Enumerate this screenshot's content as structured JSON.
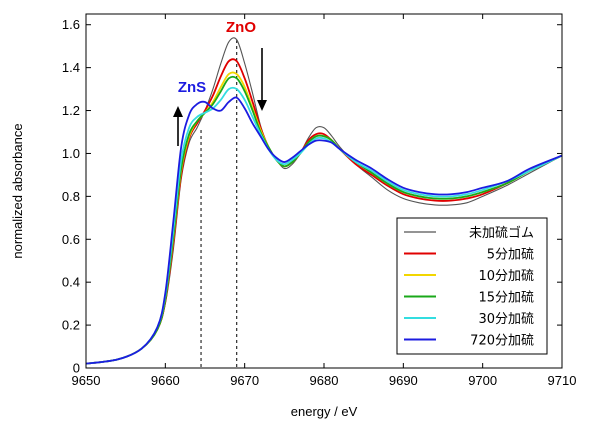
{
  "chart_data": {
    "type": "line",
    "title": "",
    "xlabel": "energy / eV",
    "ylabel": "normalized absorbance",
    "xlim": [
      9650,
      9710
    ],
    "ylim": [
      0,
      1.65
    ],
    "xticks": [
      9650,
      9660,
      9670,
      9680,
      9690,
      9700,
      9710
    ],
    "yticks": [
      0,
      0.2,
      0.4,
      0.6,
      0.8,
      1.0,
      1.2,
      1.4,
      1.6
    ],
    "xtick_labels": [
      "9650",
      "9660",
      "9670",
      "9680",
      "9690",
      "9700",
      "9710"
    ],
    "ytick_labels": [
      "0",
      "0.2",
      "0.4",
      "0.6",
      "0.8",
      "1.0",
      "1.2",
      "1.4",
      "1.6"
    ],
    "grid": false,
    "legend_position": "lower-right",
    "x": [
      9650,
      9654,
      9657,
      9659,
      9660,
      9661,
      9662,
      9663,
      9664,
      9665,
      9666,
      9667,
      9668,
      9669,
      9670,
      9671,
      9672,
      9673,
      9674,
      9675,
      9676,
      9677,
      9678,
      9679,
      9680,
      9681,
      9682,
      9684,
      9686,
      9688,
      9690,
      9692,
      9694,
      9696,
      9698,
      9700,
      9703,
      9706,
      9710
    ],
    "series": [
      {
        "name": "未加硫ゴム",
        "color": "#555555",
        "values": [
          0.02,
          0.04,
          0.09,
          0.18,
          0.3,
          0.55,
          0.88,
          1.05,
          1.12,
          1.2,
          1.3,
          1.42,
          1.52,
          1.53,
          1.42,
          1.28,
          1.13,
          1.03,
          0.97,
          0.93,
          0.95,
          1.0,
          1.07,
          1.12,
          1.12,
          1.08,
          1.03,
          0.95,
          0.89,
          0.83,
          0.79,
          0.77,
          0.76,
          0.76,
          0.77,
          0.8,
          0.85,
          0.91,
          0.99
        ]
      },
      {
        "name": "5分加硫",
        "color": "#e00000",
        "values": [
          0.02,
          0.04,
          0.09,
          0.18,
          0.31,
          0.58,
          0.9,
          1.07,
          1.14,
          1.2,
          1.27,
          1.36,
          1.43,
          1.43,
          1.35,
          1.24,
          1.12,
          1.03,
          0.97,
          0.94,
          0.96,
          1.0,
          1.06,
          1.09,
          1.09,
          1.06,
          1.02,
          0.95,
          0.9,
          0.85,
          0.81,
          0.79,
          0.78,
          0.78,
          0.79,
          0.81,
          0.86,
          0.92,
          0.99
        ]
      },
      {
        "name": "10分加硫",
        "color": "#f2d600",
        "values": [
          0.02,
          0.04,
          0.09,
          0.18,
          0.32,
          0.6,
          0.92,
          1.08,
          1.15,
          1.19,
          1.24,
          1.31,
          1.37,
          1.37,
          1.31,
          1.21,
          1.11,
          1.03,
          0.97,
          0.94,
          0.96,
          1.0,
          1.05,
          1.08,
          1.08,
          1.06,
          1.02,
          0.96,
          0.91,
          0.86,
          0.82,
          0.8,
          0.79,
          0.79,
          0.8,
          0.82,
          0.86,
          0.92,
          0.99
        ]
      },
      {
        "name": "15分加硫",
        "color": "#1aa81a",
        "values": [
          0.02,
          0.04,
          0.09,
          0.18,
          0.32,
          0.61,
          0.93,
          1.09,
          1.15,
          1.19,
          1.23,
          1.29,
          1.35,
          1.35,
          1.29,
          1.2,
          1.1,
          1.03,
          0.97,
          0.94,
          0.96,
          1.0,
          1.05,
          1.08,
          1.08,
          1.06,
          1.02,
          0.96,
          0.91,
          0.86,
          0.82,
          0.8,
          0.79,
          0.79,
          0.8,
          0.82,
          0.86,
          0.92,
          0.99
        ]
      },
      {
        "name": "30分加硫",
        "color": "#33dde0",
        "values": [
          0.02,
          0.04,
          0.09,
          0.19,
          0.34,
          0.64,
          0.97,
          1.12,
          1.17,
          1.19,
          1.21,
          1.25,
          1.3,
          1.3,
          1.25,
          1.17,
          1.09,
          1.02,
          0.97,
          0.95,
          0.97,
          1.0,
          1.04,
          1.07,
          1.07,
          1.05,
          1.02,
          0.96,
          0.92,
          0.87,
          0.83,
          0.81,
          0.8,
          0.8,
          0.81,
          0.83,
          0.87,
          0.92,
          0.99
        ]
      },
      {
        "name": "720分加硫",
        "color": "#1c1ce0",
        "values": [
          0.02,
          0.04,
          0.09,
          0.19,
          0.35,
          0.68,
          1.03,
          1.18,
          1.23,
          1.24,
          1.21,
          1.2,
          1.24,
          1.26,
          1.21,
          1.14,
          1.08,
          1.02,
          0.98,
          0.96,
          0.98,
          1.01,
          1.04,
          1.06,
          1.06,
          1.05,
          1.02,
          0.97,
          0.93,
          0.88,
          0.84,
          0.82,
          0.81,
          0.81,
          0.82,
          0.84,
          0.87,
          0.93,
          0.99
        ]
      }
    ],
    "annotations": [
      {
        "text": "ZnO",
        "color": "#e00000",
        "x": 9669
      },
      {
        "text": "ZnS",
        "color": "#1c1ce0",
        "x": 9664.5
      }
    ],
    "reference_lines_x": [
      9664.5,
      9669
    ]
  }
}
